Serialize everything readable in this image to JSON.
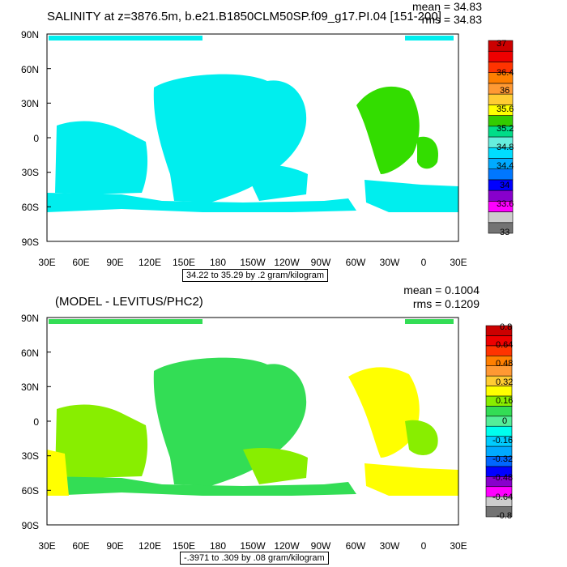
{
  "colors": {
    "top": [
      "#737373",
      "#cccccc",
      "#ff00ff",
      "#8800cc",
      "#0000ff",
      "#0077ff",
      "#00aaff",
      "#00ddff",
      "#66eedd",
      "#00dd88",
      "#33cc00",
      "#ffff00",
      "#ffcc33",
      "#ff9933",
      "#ff7f00",
      "#ff3300",
      "#ee0000",
      "#cc0000"
    ],
    "bottom": [
      "#737373",
      "#cccccc",
      "#ff00ff",
      "#8800cc",
      "#0000ff",
      "#0066ff",
      "#00aaff",
      "#00ccff",
      "#00ffee",
      "#55ee99",
      "#33dd55",
      "#88ee00",
      "#ffff00",
      "#ffcc33",
      "#ff9933",
      "#ff7f00",
      "#ff3300",
      "#ee0000",
      "#cc0000"
    ]
  },
  "panel1": {
    "title": "SALINITY at z=3876.5m, b.e21.B1850CLM50SP.f09_g17.PI.04 [151-200]",
    "mean": "mean = 34.83",
    "rms": "rms = 34.83",
    "caption": "34.22 to 35.29 by .2 gram/kilogram",
    "lat_labels": [
      "90N",
      "60N",
      "30N",
      "0",
      "30S",
      "60S",
      "90S"
    ],
    "lon_labels": [
      "30E",
      "60E",
      "90E",
      "120E",
      "150E",
      "180",
      "150W",
      "120W",
      "90W",
      "60W",
      "30W",
      "0",
      "30E"
    ],
    "colorbar_labels": [
      "37",
      "36.4",
      "36",
      "35.6",
      "35.2",
      "34.8",
      "34.4",
      "34",
      "33.6",
      "33"
    ]
  },
  "panel2": {
    "title": "(MODEL - LEVITUS/PHC2)",
    "mean": "mean = 0.1004",
    "rms": "rms = 0.1209",
    "caption": "-.3971 to .309 by .08 gram/kilogram",
    "lat_labels": [
      "90N",
      "60N",
      "30N",
      "0",
      "30S",
      "60S",
      "90S"
    ],
    "lon_labels": [
      "30E",
      "60E",
      "90E",
      "120E",
      "150E",
      "180",
      "150W",
      "120W",
      "90W",
      "60W",
      "30W",
      "0",
      "30E"
    ],
    "colorbar_labels": [
      "0.8",
      "0.64",
      "0.48",
      "0.32",
      "0.16",
      "0",
      "-0.16",
      "-0.32",
      "-0.48",
      "-0.64",
      "-0.8"
    ]
  }
}
